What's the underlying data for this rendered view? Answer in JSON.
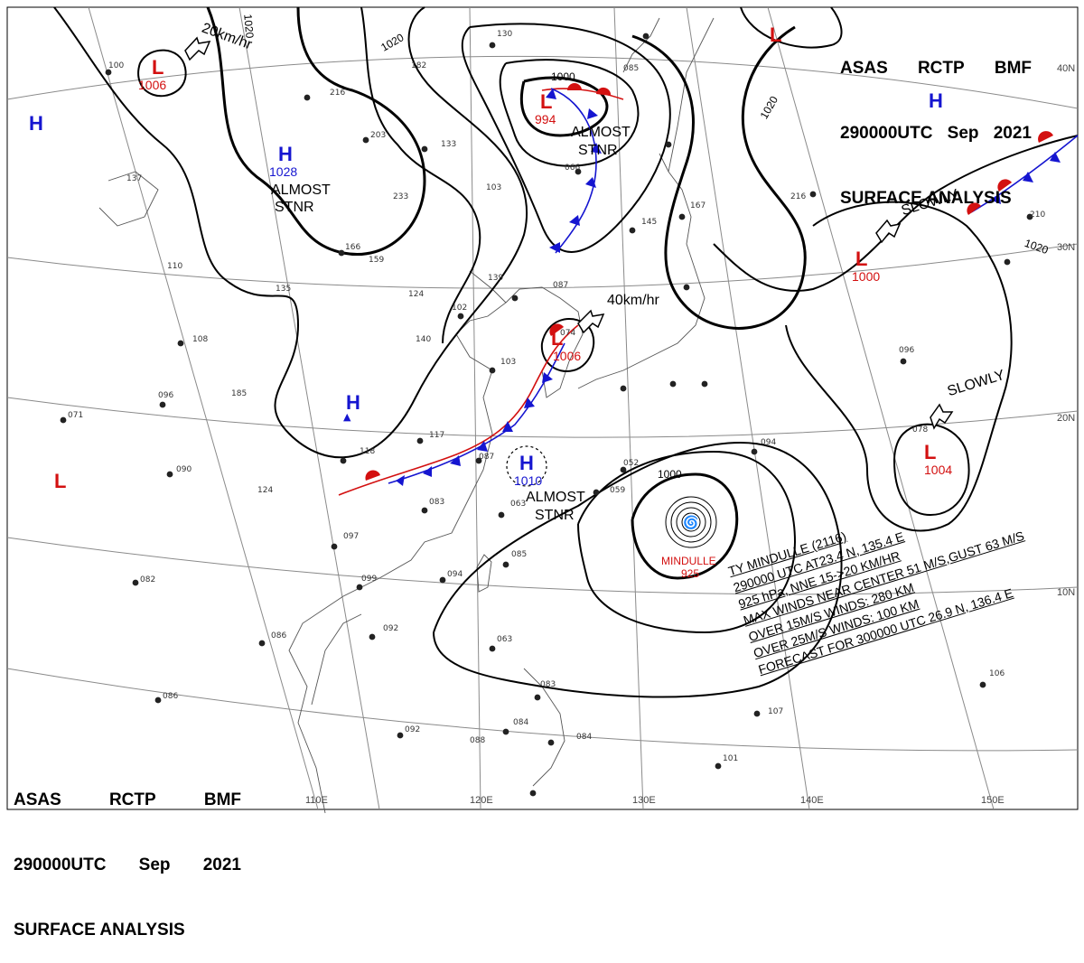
{
  "header": {
    "agency": "ASAS",
    "station": "RCTP",
    "office": "BMF",
    "time": "290000UTC",
    "month": "Sep",
    "year": "2021",
    "product": "SURFACE ANALYSIS"
  },
  "colors": {
    "high": "#1515d0",
    "low": "#d31010",
    "isobar": "#000000",
    "coast": "#555555",
    "grid": "#8a8a8a"
  },
  "pressure_centers": [
    {
      "id": "h-northeast",
      "type": "H",
      "value": ""
    },
    {
      "id": "l-north",
      "type": "L",
      "value": "1006"
    },
    {
      "id": "h-westedge",
      "type": "H",
      "value": ""
    },
    {
      "id": "h-mongolia",
      "type": "H",
      "value": "1028"
    },
    {
      "id": "l-sea-japan",
      "type": "L",
      "value": "994"
    },
    {
      "id": "l-topright",
      "type": "L",
      "value": ""
    },
    {
      "id": "l-pacific-north",
      "type": "L",
      "value": "1000"
    },
    {
      "id": "l-east-china",
      "type": "L",
      "value": "1006"
    },
    {
      "id": "h-china",
      "type": "H",
      "value": ""
    },
    {
      "id": "h-taiwan-strait",
      "type": "H",
      "value": "1010"
    },
    {
      "id": "l-pacific-east",
      "type": "L",
      "value": "1004"
    },
    {
      "id": "l-west",
      "type": "L",
      "value": ""
    }
  ],
  "isobar_labels": [
    "1020",
    "1020",
    "1000",
    "1020",
    "1020",
    "1000"
  ],
  "lat_labels": [
    "40N",
    "30N",
    "20N",
    "10N"
  ],
  "lon_labels": [
    "110E",
    "120E",
    "130E",
    "140E",
    "150E"
  ],
  "notes": {
    "motion_north": "20km/hr",
    "motion_low": "40km/hr",
    "slowly_1": "SLOWLY",
    "slowly_2": "SLOWLY",
    "stnr_1_a": "ALMOST",
    "stnr_1_b": "STNR",
    "stnr_2_a": "ALMOST",
    "stnr_2_b": "STNR",
    "stnr_3_a": "ALMOST",
    "stnr_3_b": "STNR"
  },
  "typhoon": {
    "name": "MINDULLE",
    "pressure": "925",
    "info": [
      "TY MINDULLE (2116)",
      "290000 UTC AT23.4 N, 135.4 E",
      "925 hPa, NNE 15->20 KM/HR",
      "MAX WINDS NEAR CENTER 51 M/S,GUST 63 M/S",
      "OVER 15M/S WINDS: 280 KM",
      "OVER 25M/S WINDS: 100 KM",
      "FORECAST FOR 300000 UTC 26.9 N, 136.4 E"
    ]
  }
}
